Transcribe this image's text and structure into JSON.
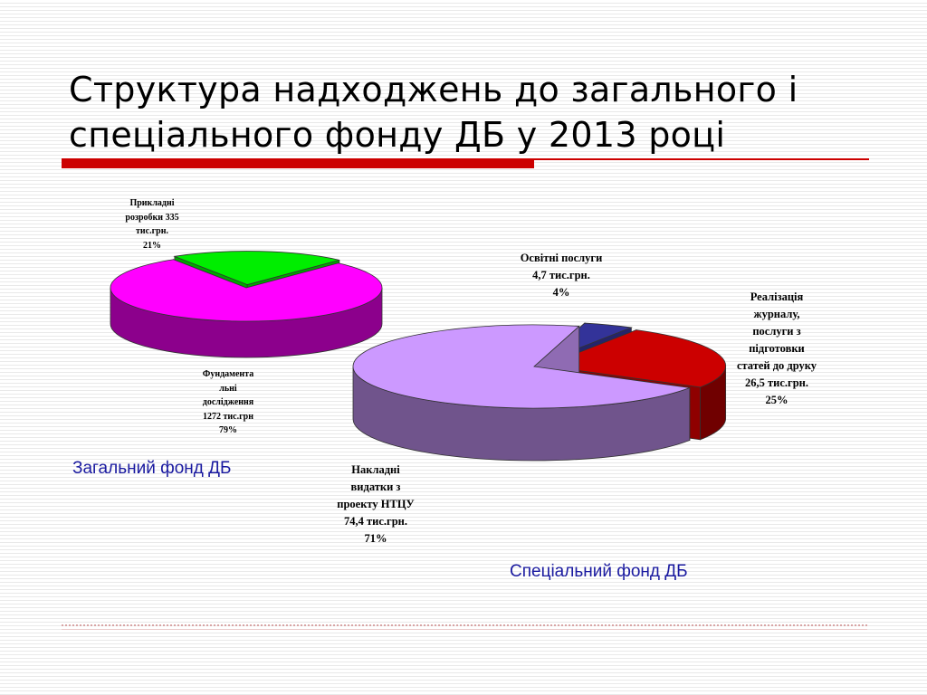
{
  "title_lines": [
    "Структура надходжень до загального і",
    "спеціального фонду ДБ у 2013 році"
  ],
  "colors": {
    "title_rule": "#cc0000",
    "caption": "#1a1aa0"
  },
  "chart_data": [
    {
      "type": "pie",
      "title": "Загальний фонд ДБ",
      "style": "3d-exploded",
      "slices": [
        {
          "label_lines": [
            "Прикладні",
            "розробки 335",
            "тис.грн.",
            "21%"
          ],
          "value": 335,
          "percent": 21,
          "unit": "тис.грн.",
          "color": "#00ee00"
        },
        {
          "label_lines": [
            "Фундамента",
            "льні",
            "дослідження",
            "1272 тис.грн",
            "79%"
          ],
          "value": 1272,
          "percent": 79,
          "unit": "тис.грн",
          "color": "#ff00ff"
        }
      ]
    },
    {
      "type": "pie",
      "title": "Спеціальний фонд ДБ",
      "style": "3d-exploded",
      "slices": [
        {
          "label_lines": [
            "Освітні послуги",
            "4,7 тис.грн.",
            "4%"
          ],
          "value": 4.7,
          "percent": 4,
          "unit": "тис.грн.",
          "color": "#333399"
        },
        {
          "label_lines": [
            "Реалізація",
            "журналу,",
            "послуги з",
            "підготовки",
            "статей до друку",
            "26,5 тис.грн.",
            "25%"
          ],
          "value": 26.5,
          "percent": 25,
          "unit": "тис.грн.",
          "color": "#cc0000"
        },
        {
          "label_lines": [
            "Накладні",
            "видатки з",
            "проекту НТЦУ",
            "74,4 тис.грн.",
            "71%"
          ],
          "value": 74.4,
          "percent": 71,
          "unit": "тис.грн.",
          "color": "#cc99ff"
        }
      ]
    }
  ]
}
